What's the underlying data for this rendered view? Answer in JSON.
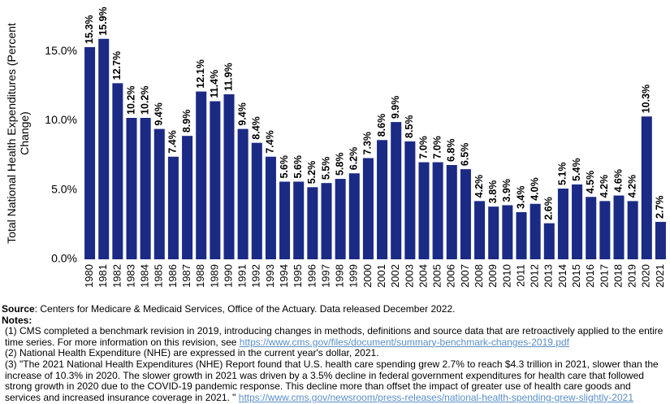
{
  "chart_data": {
    "type": "bar",
    "ylabel": "Total National Health Expenditures (Percent Change)",
    "categories": [
      "1980",
      "1981",
      "1982",
      "1983",
      "1984",
      "1985",
      "1986",
      "1987",
      "1988",
      "1989",
      "1990",
      "1991",
      "1992",
      "1993",
      "1994",
      "1995",
      "1996",
      "1997",
      "1998",
      "1999",
      "2000",
      "2001",
      "2002",
      "2003",
      "2004",
      "2005",
      "2006",
      "2007",
      "2008",
      "2009",
      "2010",
      "2011",
      "2012",
      "2013",
      "2014",
      "2015",
      "2016",
      "2017",
      "2018",
      "2019",
      "2020",
      "2021"
    ],
    "values": [
      15.3,
      15.9,
      12.7,
      10.2,
      10.2,
      9.4,
      7.4,
      8.9,
      12.1,
      11.4,
      11.9,
      9.4,
      8.4,
      7.4,
      5.6,
      5.6,
      5.2,
      5.5,
      5.8,
      6.2,
      7.3,
      8.6,
      9.9,
      8.5,
      7.0,
      7.0,
      6.8,
      6.5,
      4.2,
      3.8,
      3.9,
      3.4,
      4.0,
      2.6,
      5.1,
      5.4,
      4.5,
      4.2,
      4.6,
      4.2,
      10.3,
      2.7
    ],
    "value_labels": [
      "15.3%",
      "15.9%",
      "12.7%",
      "10.2%",
      "10.2%",
      "9.4%",
      "7.4%",
      "8.9%",
      "12.1%",
      "11.4%",
      "11.9%",
      "9.4%",
      "8.4%",
      "7.4%",
      "5.6%",
      "5.6%",
      "5.2%",
      "5.5%",
      "5.8%",
      "6.2%",
      "7.3%",
      "8.6%",
      "9.9%",
      "8.5%",
      "7.0%",
      "7.0%",
      "6.8%",
      "6.5%",
      "4.2%",
      "3.8%",
      "3.9%",
      "3.4%",
      "4.0%",
      "2.6%",
      "5.1%",
      "5.4%",
      "4.5%",
      "4.2%",
      "4.6%",
      "4.2%",
      "10.3%",
      "2.7%"
    ],
    "color": "#1b2a85",
    "ylim": [
      0,
      18.7
    ],
    "yticks": [
      {
        "value": 0,
        "label": "0.0%"
      },
      {
        "value": 5,
        "label": "5.0%"
      },
      {
        "value": 10,
        "label": "10.0%"
      },
      {
        "value": 15,
        "label": "15.0%"
      }
    ],
    "grid": false
  },
  "notes": {
    "source_label": "Source",
    "source_text": ": Centers for Medicare & Medicaid Services, Office of the Actuary. Data released December 2022.",
    "notes_label": "Notes",
    "items": [
      {
        "text": "(1) CMS completed a benchmark revision in 2019, introducing changes in methods, definitions and source data that are retroactively applied to the entire time series. For more information on this revision, see ",
        "link": "https://www.cms.gov/files/document/summary-benchmark-changes-2019.pdf"
      },
      {
        "text": "(2) National Health Expenditure (NHE) are expressed in the current year's dollar, 2021."
      },
      {
        "text": "(3) \"The 2021 National Health Expenditures (NHE) Report found that U.S. health care spending grew 2.7% to reach $4.3 trillion in 2021, slower than the increase of 10.3% in 2020. The slower growth in 2021 was driven by a 3.5% decline in federal government expenditures for health care that followed strong growth in 2020 due to the COVID-19 pandemic response. This decline more than offset the impact of greater use of health care goods and services and increased insurance coverage in 2021. \" ",
        "link": "https://www.cms.gov/newsroom/press-releases/national-health-spending-grew-slightly-2021"
      }
    ]
  }
}
